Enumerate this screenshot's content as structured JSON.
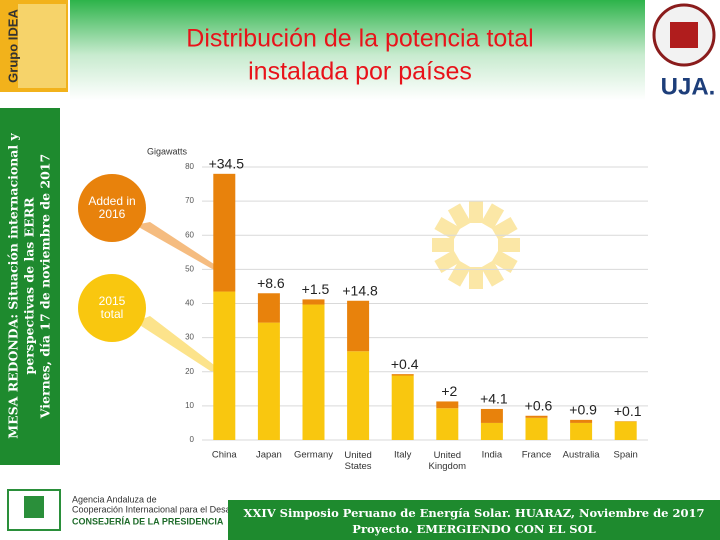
{
  "header": {
    "title_lines": [
      "Distribución de la potencia total",
      "instalada por países"
    ],
    "logo_left": "Grupo IDEA",
    "logo_right": "UJA."
  },
  "sidebar": {
    "lines": [
      "MESA REDONDA: Situación internacional y",
      "perspectivas de las EERR",
      "Viernes, día 17 de noviembre de 2017"
    ]
  },
  "footer": {
    "agency_lines": [
      "Agencia Andaluza de",
      "Cooperación Internacional para el Desarrollo"
    ],
    "department": "CONSEJERÍA DE LA PRESIDENCIA",
    "banner_lines": [
      "XXIV Simposio Peruano de Energía Solar. HUARAZ, Noviembre de 2017",
      "Proyecto. EMERGIENDO CON EL SOL"
    ]
  },
  "chart_data": {
    "type": "stacked_bar",
    "y_label": "Gigawatts",
    "categories": [
      "China",
      "Japan",
      "Germany",
      "United States",
      "Italy",
      "United Kingdom",
      "India",
      "France",
      "Australia",
      "Spain"
    ],
    "series": [
      {
        "name": "2015 total",
        "color": "#f9c70f",
        "values": [
          43.5,
          34.4,
          39.7,
          26,
          18.9,
          9.3,
          5,
          6.5,
          5,
          5.4
        ]
      },
      {
        "name": "Added in 2016",
        "color": "#e8820c",
        "values": [
          34.5,
          8.6,
          1.5,
          14.8,
          0.4,
          2,
          4.1,
          0.6,
          0.9,
          0.1
        ],
        "value_labels": [
          "+34.5",
          "+8.6",
          "+1.5",
          "+14.8",
          "+0.4",
          "+2",
          "+4.1",
          "+0.6",
          "+0.9",
          "+0.1"
        ]
      }
    ],
    "ylim": [
      0,
      80
    ],
    "yticks": [
      0,
      10,
      20,
      30,
      40,
      50,
      60,
      70,
      80
    ],
    "grid": true
  }
}
